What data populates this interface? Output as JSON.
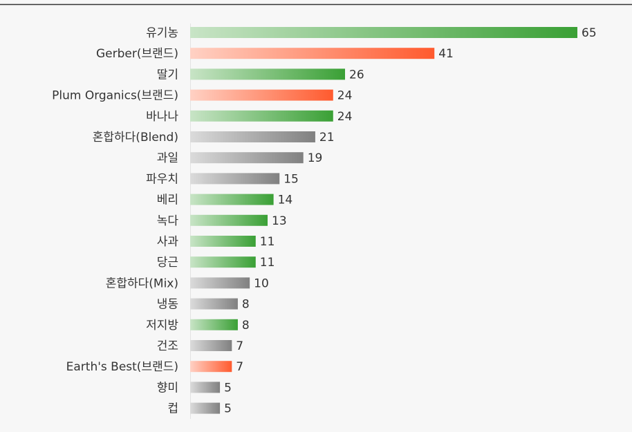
{
  "chart_data": {
    "type": "bar",
    "orientation": "horizontal",
    "categories": [
      "유기농",
      "Gerber(브랜드)",
      "딸기",
      "Plum Organics(브랜드)",
      "바나나",
      "혼합하다(Blend)",
      "과일",
      "파우치",
      "베리",
      "녹다",
      "사과",
      "당근",
      "혼합하다(Mix)",
      "냉동",
      "저지방",
      "건조",
      "Earth's Best(브랜드)",
      "향미",
      "컵"
    ],
    "values": [
      65,
      41,
      26,
      24,
      24,
      21,
      19,
      15,
      14,
      13,
      11,
      11,
      10,
      8,
      8,
      7,
      7,
      5,
      5
    ],
    "colors": [
      "#3aa035",
      "#ff5a2e",
      "#3aa035",
      "#ff5a2e",
      "#3aa035",
      "#808080",
      "#808080",
      "#808080",
      "#3aa035",
      "#3aa035",
      "#3aa035",
      "#3aa035",
      "#808080",
      "#808080",
      "#3aa035",
      "#808080",
      "#ff5a2e",
      "#808080",
      "#808080"
    ]
  }
}
